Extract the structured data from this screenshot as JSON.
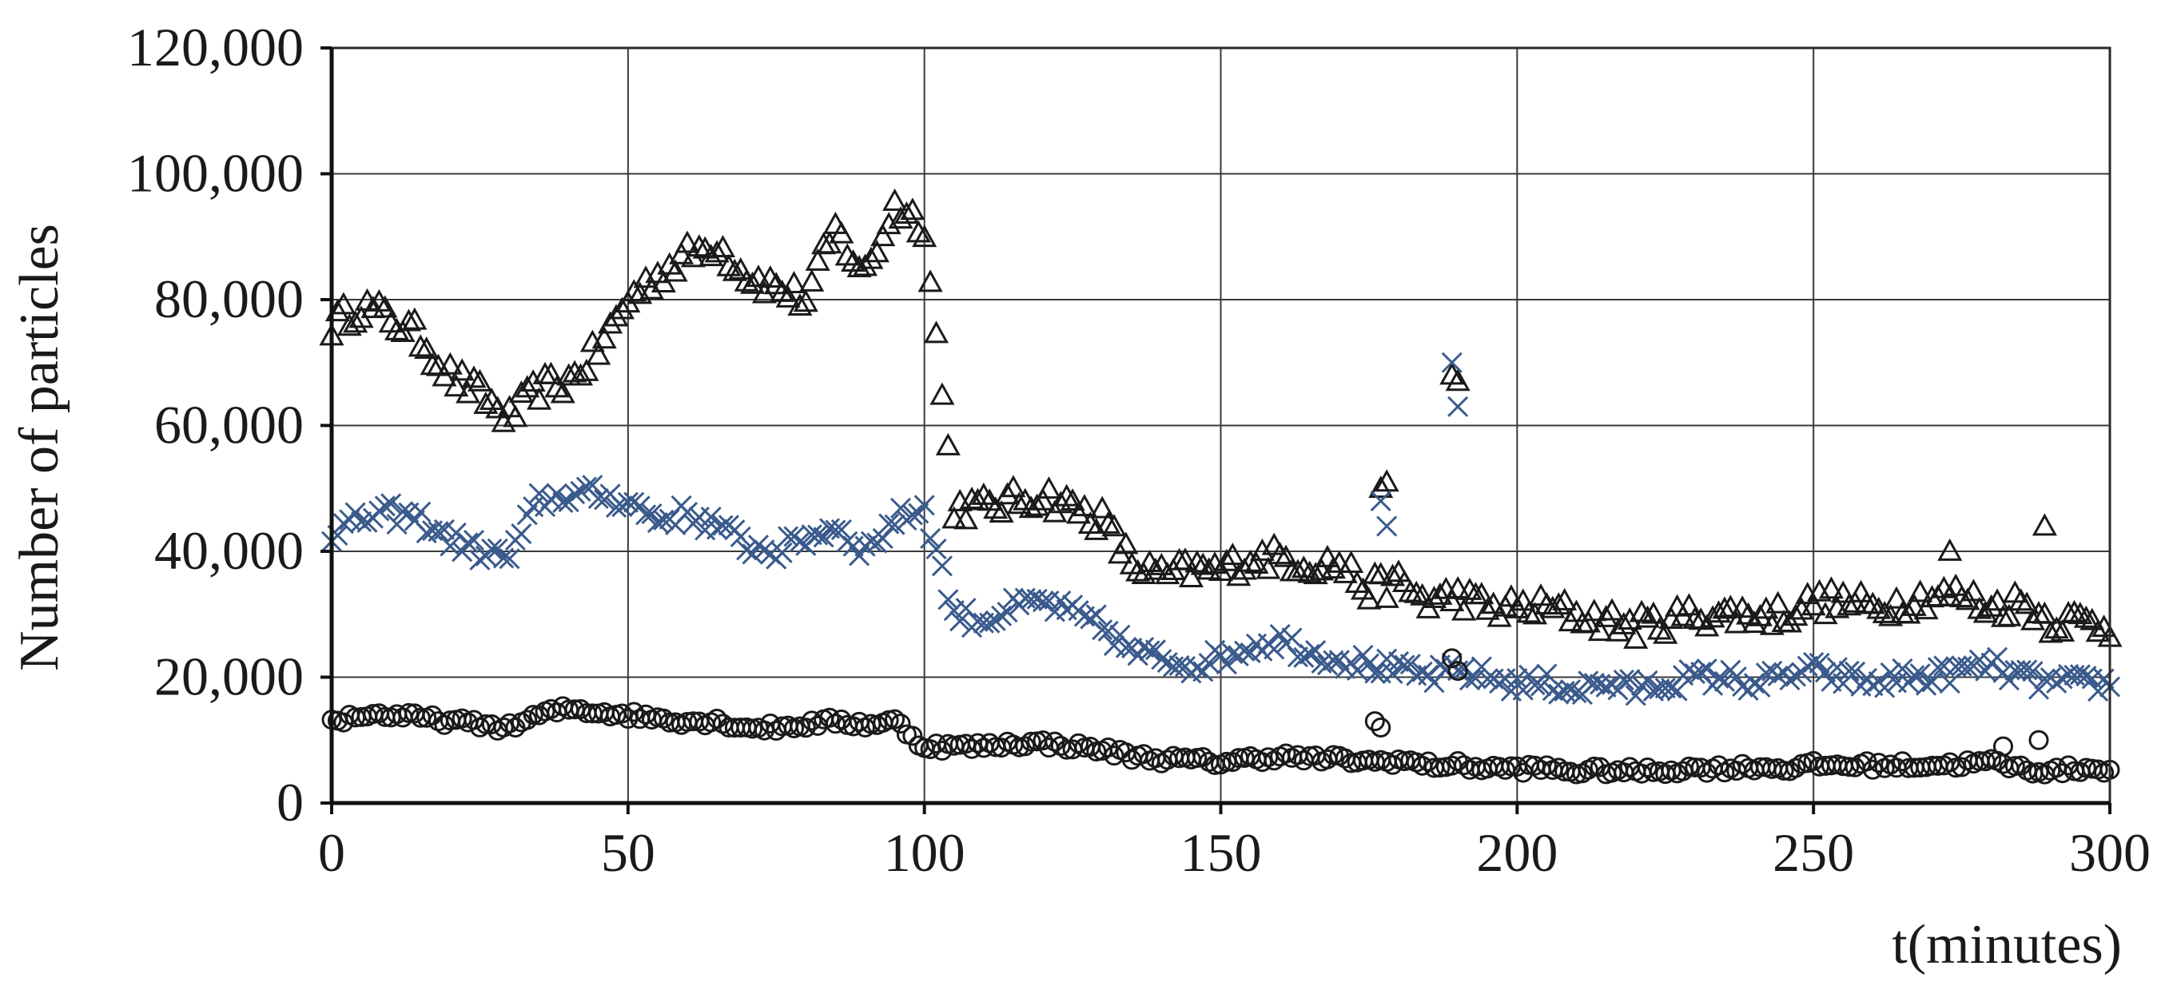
{
  "chart_data": {
    "type": "scatter",
    "title": "",
    "xlabel": "t(minutes)",
    "ylabel": "Number of particles",
    "xlim": [
      0,
      300
    ],
    "ylim": [
      0,
      120000
    ],
    "x_ticks": [
      0,
      50,
      100,
      150,
      200,
      250,
      300
    ],
    "y_ticks": [
      0,
      20000,
      40000,
      60000,
      80000,
      100000,
      120000
    ],
    "x_tick_labels": [
      "0",
      "50",
      "100",
      "150",
      "200",
      "250",
      "300"
    ],
    "y_tick_labels": [
      "0",
      "20,000",
      "40,000",
      "60,000",
      "80,000",
      "100,000",
      "120,000"
    ],
    "grid": true,
    "legend": "none",
    "series": [
      {
        "marker": "triangle",
        "color": "#1a1a1a",
        "x": [
          0,
          5,
          10,
          15,
          20,
          25,
          30,
          35,
          40,
          45,
          50,
          55,
          60,
          65,
          70,
          75,
          80,
          85,
          90,
          95,
          100,
          105,
          110,
          115,
          120,
          125,
          130,
          135,
          140,
          145,
          150,
          155,
          160,
          165,
          170,
          175,
          180,
          185,
          190,
          195,
          200,
          205,
          210,
          215,
          220,
          225,
          230,
          235,
          240,
          245,
          250,
          255,
          260,
          265,
          270,
          275,
          280,
          285,
          290,
          295,
          300
        ],
        "y": [
          76000,
          79000,
          77000,
          74000,
          68000,
          65000,
          61000,
          66000,
          67000,
          72000,
          80000,
          84000,
          87000,
          89000,
          84000,
          82000,
          80000,
          91000,
          84000,
          95000,
          92000,
          47000,
          47000,
          48000,
          49000,
          47000,
          45000,
          38000,
          36000,
          37000,
          37000,
          39000,
          39000,
          38000,
          38000,
          34000,
          35000,
          32000,
          33000,
          31000,
          31000,
          31000,
          30000,
          29000,
          28000,
          29000,
          30000,
          30000,
          30000,
          30000,
          32000,
          32000,
          31000,
          32000,
          33000,
          33000,
          31000,
          32000,
          29000,
          29000,
          28000
        ]
      },
      {
        "marker": "x",
        "color": "#3a5a8c",
        "x": [
          0,
          5,
          10,
          15,
          20,
          25,
          30,
          35,
          40,
          45,
          50,
          55,
          60,
          65,
          70,
          75,
          80,
          85,
          90,
          95,
          100,
          105,
          110,
          115,
          120,
          125,
          130,
          135,
          140,
          145,
          150,
          155,
          160,
          165,
          170,
          175,
          180,
          185,
          190,
          195,
          200,
          205,
          210,
          215,
          220,
          225,
          230,
          235,
          240,
          245,
          250,
          255,
          260,
          265,
          270,
          275,
          280,
          285,
          290,
          295,
          300
        ],
        "y": [
          43000,
          45000,
          46000,
          45000,
          42000,
          40000,
          39000,
          48000,
          49000,
          49000,
          48000,
          45000,
          46000,
          44000,
          41000,
          40000,
          42000,
          44000,
          40000,
          45000,
          47000,
          30000,
          29000,
          31000,
          32000,
          30000,
          28000,
          24000,
          23000,
          22000,
          23000,
          25000,
          26000,
          24000,
          23000,
          22000,
          21000,
          20000,
          21000,
          20000,
          19000,
          19000,
          18000,
          19000,
          18000,
          19000,
          20000,
          20000,
          19000,
          20000,
          21000,
          20000,
          19000,
          20000,
          20000,
          21000,
          22000,
          20000,
          19000,
          19000,
          19000
        ]
      },
      {
        "marker": "circle",
        "color": "#1a1a1a",
        "x": [
          0,
          5,
          10,
          15,
          20,
          25,
          30,
          35,
          40,
          45,
          50,
          55,
          60,
          65,
          70,
          75,
          80,
          85,
          90,
          95,
          100,
          105,
          110,
          115,
          120,
          125,
          130,
          135,
          140,
          145,
          150,
          155,
          160,
          165,
          170,
          175,
          180,
          185,
          190,
          195,
          200,
          205,
          210,
          215,
          220,
          225,
          230,
          235,
          240,
          245,
          250,
          255,
          260,
          265,
          270,
          275,
          280,
          285,
          290,
          295,
          300
        ],
        "y": [
          13000,
          14000,
          14000,
          13500,
          13000,
          12500,
          12000,
          14000,
          15000,
          14500,
          14000,
          13500,
          13000,
          13000,
          12000,
          12000,
          12500,
          13000,
          12500,
          13000,
          9000,
          9000,
          9000,
          9500,
          9500,
          9000,
          8500,
          7500,
          7000,
          6800,
          6500,
          7000,
          7500,
          7000,
          7000,
          6500,
          6800,
          6000,
          6000,
          5500,
          5500,
          5500,
          5000,
          5200,
          5000,
          5200,
          5500,
          5500,
          5800,
          5500,
          6000,
          6000,
          6000,
          6000,
          6000,
          6200,
          6500,
          5500,
          5000,
          5500,
          5500
        ]
      }
    ],
    "outliers": [
      {
        "marker": "triangle",
        "x": [
          177,
          178,
          189,
          190,
          273,
          289
        ],
        "y": [
          50000,
          51000,
          68000,
          67000,
          40000,
          44000
        ]
      },
      {
        "marker": "x",
        "x": [
          177,
          178,
          189,
          190
        ],
        "y": [
          48000,
          44000,
          70000,
          63000
        ]
      },
      {
        "marker": "circle",
        "x": [
          176,
          177,
          189,
          190,
          282,
          288
        ],
        "y": [
          13000,
          12000,
          23000,
          21000,
          9000,
          10000
        ]
      }
    ]
  }
}
